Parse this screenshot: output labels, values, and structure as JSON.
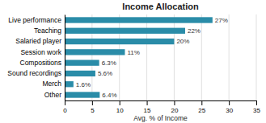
{
  "chart_data": {
    "type": "bar",
    "orientation": "horizontal",
    "title": "Income Allocation",
    "xlabel": "Avg. % of Income",
    "categories": [
      "Other",
      "Merch",
      "Sound recordings",
      "Compositions",
      "Session work",
      "Salaried player",
      "Teaching",
      "Live performance"
    ],
    "values": [
      6.4,
      1.6,
      5.6,
      6.3,
      11.0,
      20.0,
      22.0,
      27.0
    ],
    "value_labels": [
      "6.4%",
      "1.6%",
      "5.6%",
      "6.3%",
      "11%",
      "20%",
      "22%",
      "27%"
    ],
    "data_labels": true,
    "color": "#2a8ca8",
    "xlim": [
      0,
      35
    ],
    "xticks": [
      0,
      5,
      10,
      15,
      20,
      25,
      30,
      35
    ],
    "grid": true
  }
}
